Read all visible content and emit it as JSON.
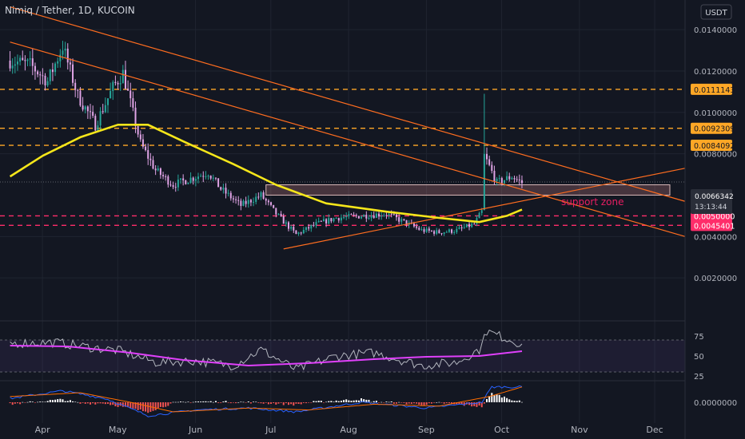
{
  "header": {
    "title": "Nimiq / Tether, 1D, KUCOIN",
    "currency": "USDT"
  },
  "colors": {
    "background": "#131722",
    "grid": "#1f2430",
    "up": "#26a69a",
    "down": "#e0a4e6",
    "ma": "#f5e61a",
    "trendline": "#ff6d1f",
    "orange_level": "#ffa726",
    "pink_level": "#ff2d6a",
    "rsi_line": "#e040fb",
    "macd": "#2962ff",
    "signal": "#ff6d00",
    "hist_pos": "#ffffff",
    "hist_neg": "#f05252"
  },
  "chart_data": {
    "type": "candlestick",
    "pair": "NIM/USDT",
    "timeframe": "1D",
    "x_ticks": [
      "Apr",
      "May",
      "Jun",
      "Jul",
      "Aug",
      "Sep",
      "Oct",
      "Nov",
      "Dec"
    ],
    "y_ticks": [
      "0.0140000",
      "0.0120000",
      "0.0100000",
      "0.0080000",
      "0.0040000",
      "0.0020000"
    ],
    "ylim": [
      0.0,
      0.0152
    ],
    "price_levels": [
      {
        "value": 0.0111143,
        "label": "0.0111143",
        "color": "#ffa726"
      },
      {
        "value": 0.0092309,
        "label": "0.0092309",
        "color": "#ffa726"
      },
      {
        "value": 0.0084092,
        "label": "0.0084092",
        "color": "#ffa726"
      },
      {
        "value": 0.005,
        "label": "0.0050000",
        "color": "#ff2d6a"
      },
      {
        "value": 0.0045401,
        "label": "0.0045401",
        "color": "#ff2d6a"
      }
    ],
    "current_price": {
      "value": 0.0066342,
      "label": "0.0066342",
      "countdown": "13:13:44"
    },
    "annotation": "support zone",
    "close_points": [
      {
        "date": "2021-03-28",
        "close": 0.0125
      },
      {
        "date": "2021-04-05",
        "close": 0.0123
      },
      {
        "date": "2021-04-12",
        "close": 0.0115
      },
      {
        "date": "2021-04-18",
        "close": 0.0132
      },
      {
        "date": "2021-04-24",
        "close": 0.0108
      },
      {
        "date": "2021-05-01",
        "close": 0.0094
      },
      {
        "date": "2021-05-08",
        "close": 0.0112
      },
      {
        "date": "2021-05-12",
        "close": 0.0119
      },
      {
        "date": "2021-05-19",
        "close": 0.0085
      },
      {
        "date": "2021-05-25",
        "close": 0.0072
      },
      {
        "date": "2021-06-01",
        "close": 0.0065
      },
      {
        "date": "2021-06-08",
        "close": 0.0068
      },
      {
        "date": "2021-06-15",
        "close": 0.0071
      },
      {
        "date": "2021-06-20",
        "close": 0.0063
      },
      {
        "date": "2021-06-28",
        "close": 0.0055
      },
      {
        "date": "2021-07-06",
        "close": 0.006
      },
      {
        "date": "2021-07-12",
        "close": 0.0051
      },
      {
        "date": "2021-07-20",
        "close": 0.0041
      },
      {
        "date": "2021-07-28",
        "close": 0.0046
      },
      {
        "date": "2021-08-05",
        "close": 0.0049
      },
      {
        "date": "2021-08-15",
        "close": 0.005
      },
      {
        "date": "2021-08-25",
        "close": 0.0051
      },
      {
        "date": "2021-09-01",
        "close": 0.0047
      },
      {
        "date": "2021-09-08",
        "close": 0.0043
      },
      {
        "date": "2021-09-15",
        "close": 0.0042
      },
      {
        "date": "2021-09-22",
        "close": 0.0043
      },
      {
        "date": "2021-09-29",
        "close": 0.0046
      },
      {
        "date": "2021-10-02",
        "close": 0.0052
      },
      {
        "date": "2021-10-03",
        "close": 0.0079
      },
      {
        "date": "2021-10-08",
        "close": 0.0066
      },
      {
        "date": "2021-10-14",
        "close": 0.0069
      },
      {
        "date": "2021-10-18",
        "close": 0.0066
      }
    ],
    "spike": {
      "date": "2021-10-03",
      "high": 0.0109
    },
    "ma_points": [
      {
        "date": "2021-03-28",
        "value": 0.0069
      },
      {
        "date": "2021-04-10",
        "value": 0.0079
      },
      {
        "date": "2021-04-25",
        "value": 0.0088
      },
      {
        "date": "2021-05-10",
        "value": 0.0094
      },
      {
        "date": "2021-05-22",
        "value": 0.0094
      },
      {
        "date": "2021-06-05",
        "value": 0.0086
      },
      {
        "date": "2021-06-25",
        "value": 0.0075
      },
      {
        "date": "2021-07-12",
        "value": 0.0065
      },
      {
        "date": "2021-08-01",
        "value": 0.0056
      },
      {
        "date": "2021-08-25",
        "value": 0.0052
      },
      {
        "date": "2021-09-15",
        "value": 0.0049
      },
      {
        "date": "2021-10-01",
        "value": 0.0047
      },
      {
        "date": "2021-10-12",
        "value": 0.005
      },
      {
        "date": "2021-10-18",
        "value": 0.0053
      }
    ],
    "trendlines": [
      {
        "from": {
          "date": "2021-03-28",
          "value": 0.0151
        },
        "to": {
          "date": "2021-12-22",
          "value": 0.0057
        }
      },
      {
        "from": {
          "date": "2021-03-28",
          "value": 0.0134
        },
        "to": {
          "date": "2021-12-22",
          "value": 0.004
        }
      },
      {
        "from": {
          "date": "2021-07-15",
          "value": 0.0034
        },
        "to": {
          "date": "2021-12-22",
          "value": 0.0073
        }
      }
    ],
    "zones": [
      {
        "from_date": "2021-07-08",
        "to_date": "2021-12-22",
        "low": 0.006,
        "high": 0.0065
      }
    ],
    "rsi": {
      "ticks": [
        "75",
        "50",
        "25"
      ],
      "band": [
        30,
        70
      ],
      "points": [
        {
          "date": "2021-03-28",
          "value": 66
        },
        {
          "date": "2021-04-15",
          "value": 67
        },
        {
          "date": "2021-05-01",
          "value": 60
        },
        {
          "date": "2021-05-10",
          "value": 57
        },
        {
          "date": "2021-05-25",
          "value": 42
        },
        {
          "date": "2021-06-10",
          "value": 44
        },
        {
          "date": "2021-06-25",
          "value": 38
        },
        {
          "date": "2021-07-06",
          "value": 58
        },
        {
          "date": "2021-07-20",
          "value": 33
        },
        {
          "date": "2021-08-05",
          "value": 50
        },
        {
          "date": "2021-08-20",
          "value": 54
        },
        {
          "date": "2021-09-08",
          "value": 38
        },
        {
          "date": "2021-09-22",
          "value": 42
        },
        {
          "date": "2021-10-02",
          "value": 60
        },
        {
          "date": "2021-10-03",
          "value": 82
        },
        {
          "date": "2021-10-18",
          "value": 65
        }
      ],
      "ma_points": [
        {
          "date": "2021-03-28",
          "value": 63
        },
        {
          "date": "2021-04-20",
          "value": 62
        },
        {
          "date": "2021-05-15",
          "value": 54
        },
        {
          "date": "2021-06-05",
          "value": 45
        },
        {
          "date": "2021-07-01",
          "value": 38
        },
        {
          "date": "2021-07-25",
          "value": 41
        },
        {
          "date": "2021-08-20",
          "value": 46
        },
        {
          "date": "2021-09-10",
          "value": 49
        },
        {
          "date": "2021-10-01",
          "value": 50
        },
        {
          "date": "2021-10-18",
          "value": 56
        }
      ]
    },
    "macd": {
      "tick": "0.0000000",
      "macd_points": [
        {
          "date": "2021-03-28",
          "value": 0.0002
        },
        {
          "date": "2021-04-18",
          "value": 0.0006
        },
        {
          "date": "2021-05-05",
          "value": 0.0002
        },
        {
          "date": "2021-05-22",
          "value": -0.0007
        },
        {
          "date": "2021-06-10",
          "value": -0.0004
        },
        {
          "date": "2021-07-01",
          "value": -0.0003
        },
        {
          "date": "2021-07-20",
          "value": -0.0005
        },
        {
          "date": "2021-08-15",
          "value": 0.0
        },
        {
          "date": "2021-09-10",
          "value": -0.0003
        },
        {
          "date": "2021-10-02",
          "value": 0.0
        },
        {
          "date": "2021-10-06",
          "value": 0.0008
        },
        {
          "date": "2021-10-18",
          "value": 0.0008
        }
      ],
      "signal_points": [
        {
          "date": "2021-03-28",
          "value": 0.0003
        },
        {
          "date": "2021-04-25",
          "value": 0.0005
        },
        {
          "date": "2021-05-15",
          "value": 0.0
        },
        {
          "date": "2021-06-01",
          "value": -0.0005
        },
        {
          "date": "2021-07-01",
          "value": -0.0003
        },
        {
          "date": "2021-07-25",
          "value": -0.0004
        },
        {
          "date": "2021-08-20",
          "value": -0.0001
        },
        {
          "date": "2021-09-15",
          "value": -0.0002
        },
        {
          "date": "2021-10-05",
          "value": 0.0003
        },
        {
          "date": "2021-10-18",
          "value": 0.0008
        }
      ],
      "ylim": [
        -0.001,
        0.001
      ]
    }
  }
}
